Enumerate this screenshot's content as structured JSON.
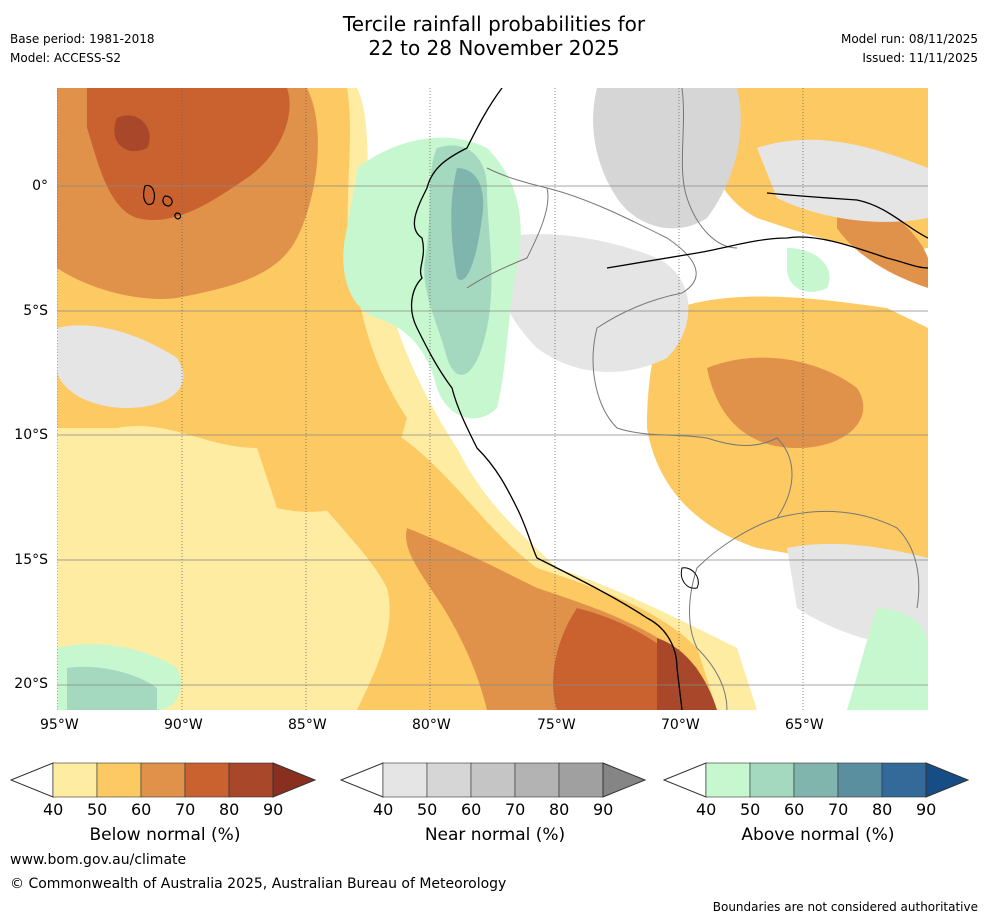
{
  "header": {
    "title_line1": "Tercile rainfall probabilities for",
    "title_line2": "22 to 28 November 2025",
    "base_period": "Base period: 1981-2018",
    "model": "Model: ACCESS-S2",
    "model_run": "Model run: 08/11/2025",
    "issued": "Issued: 11/11/2025"
  },
  "map": {
    "lon_labels": [
      "95°W",
      "90°W",
      "85°W",
      "80°W",
      "75°W",
      "70°W",
      "65°W"
    ],
    "lat_labels": [
      "0°",
      "5°S",
      "10°S",
      "15°S",
      "20°S"
    ]
  },
  "colorbars": [
    {
      "label": "Below normal (%)",
      "ticks": [
        "40",
        "50",
        "60",
        "70",
        "80",
        "90"
      ],
      "colors": [
        "#ffeca3",
        "#fdc962",
        "#e0924a",
        "#c9622e",
        "#a8472a",
        "#8a2f1f"
      ]
    },
    {
      "label": "Near normal (%)",
      "ticks": [
        "40",
        "50",
        "60",
        "70",
        "80",
        "90"
      ],
      "colors": [
        "#e5e5e5",
        "#d6d6d6",
        "#c5c5c5",
        "#b3b3b3",
        "#a0a0a0",
        "#858585"
      ]
    },
    {
      "label": "Above normal (%)",
      "ticks": [
        "40",
        "50",
        "60",
        "70",
        "80",
        "90"
      ],
      "colors": [
        "#c6f7cf",
        "#a5d9bf",
        "#80b5ad",
        "#5a8fa0",
        "#336a9a",
        "#174d85"
      ]
    }
  ],
  "footer": {
    "url": "www.bom.gov.au/climate",
    "copyright": "© Commonwealth of Australia 2025, Australian Bureau of Meteorology",
    "disclaimer": "Boundaries are not considered authoritative"
  }
}
